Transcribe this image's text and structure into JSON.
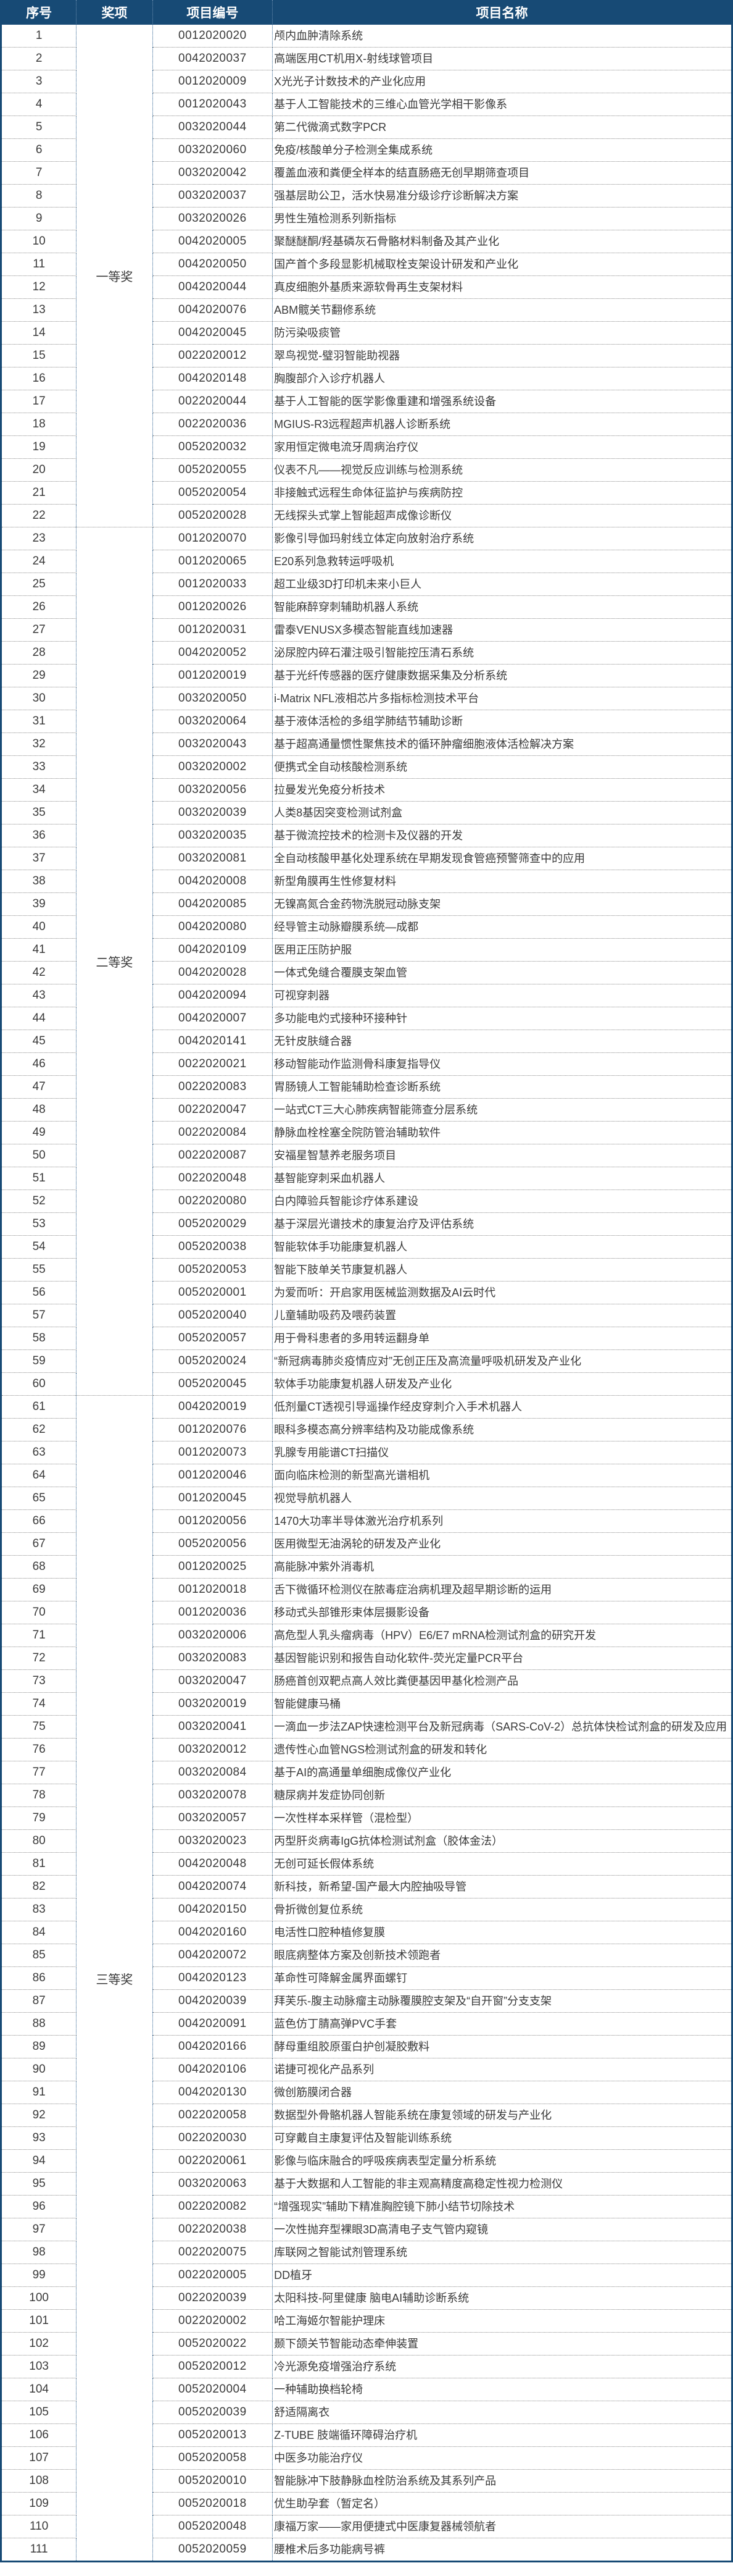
{
  "header": {
    "no": "序号",
    "award": "奖项",
    "code": "项目编号",
    "name": "项目名称"
  },
  "colors": {
    "header_bg": "#174a75",
    "frame": "#174a75"
  },
  "groups": [
    {
      "award": "一等奖",
      "rows": [
        [
          "1",
          "0012020020",
          "颅内血肿清除系统"
        ],
        [
          "2",
          "0042020037",
          "高端医用CT机用X-射线球管项目"
        ],
        [
          "3",
          "0012020009",
          "X光光子计数技术的产业化应用"
        ],
        [
          "4",
          "0012020043",
          "基于人工智能技术的三维心血管光学相干影像系"
        ],
        [
          "5",
          "0032020044",
          "第二代微滴式数字PCR"
        ],
        [
          "6",
          "0032020060",
          "免疫/核酸单分子检测全集成系统"
        ],
        [
          "7",
          "0032020042",
          "覆盖血液和粪便全样本的结直肠癌无创早期筛查项目"
        ],
        [
          "8",
          "0032020037",
          "强基层助公卫，活水快易准分级诊疗诊断解决方案"
        ],
        [
          "9",
          "0032020026",
          "男性生殖检测系列新指标"
        ],
        [
          "10",
          "0042020005",
          "聚醚醚酮/羟基磷灰石骨骼材料制备及其产业化"
        ],
        [
          "11",
          "0042020050",
          "国产首个多段显影机械取栓支架设计研发和产业化"
        ],
        [
          "12",
          "0042020044",
          "真皮细胞外基质来源软骨再生支架材料"
        ],
        [
          "13",
          "0042020076",
          "ABM髋关节翻修系统"
        ],
        [
          "14",
          "0042020045",
          "防污染吸痰管"
        ],
        [
          "15",
          "0022020012",
          "翠鸟视觉-璧羽智能助视器"
        ],
        [
          "16",
          "0042020148",
          "胸腹部介入诊疗机器人"
        ],
        [
          "17",
          "0022020044",
          "基于人工智能的医学影像重建和增强系统设备"
        ],
        [
          "18",
          "0022020036",
          "MGIUS-R3远程超声机器人诊断系统"
        ],
        [
          "19",
          "0052020032",
          "家用恒定微电流牙周病治疗仪"
        ],
        [
          "20",
          "0052020055",
          "仪表不凡——视觉反应训练与检测系统"
        ],
        [
          "21",
          "0052020054",
          "非接触式远程生命体征监护与疾病防控"
        ],
        [
          "22",
          "0052020028",
          "无线探头式掌上智能超声成像诊断仪"
        ]
      ]
    },
    {
      "award": "二等奖",
      "rows": [
        [
          "23",
          "0012020070",
          "影像引导伽玛射线立体定向放射治疗系统"
        ],
        [
          "24",
          "0012020065",
          "E20系列急救转运呼吸机"
        ],
        [
          "25",
          "0012020033",
          "超工业级3D打印机未来小巨人"
        ],
        [
          "26",
          "0012020026",
          "智能麻醉穿刺辅助机器人系统"
        ],
        [
          "27",
          "0012020031",
          "雷泰VENUSX多模态智能直线加速器"
        ],
        [
          "28",
          "0042020052",
          "泌尿腔内碎石灌注吸引智能控压清石系统"
        ],
        [
          "29",
          "0012020019",
          "基于光纤传感器的医疗健康数据采集及分析系统"
        ],
        [
          "30",
          "0032020050",
          "i-Matrix NFL液相芯片多指标检测技术平台"
        ],
        [
          "31",
          "0032020064",
          "基于液体活检的多组学肺结节辅助诊断"
        ],
        [
          "32",
          "0032020043",
          "基于超高通量惯性聚焦技术的循环肿瘤细胞液体活检解决方案"
        ],
        [
          "33",
          "0032020002",
          "便携式全自动核酸检测系统"
        ],
        [
          "34",
          "0032020056",
          "拉曼发光免疫分析技术"
        ],
        [
          "35",
          "0032020039",
          "人类8基因突变检测试剂盒"
        ],
        [
          "36",
          "0032020035",
          "基于微流控技术的检测卡及仪器的开发"
        ],
        [
          "37",
          "0032020081",
          "全自动核酸甲基化处理系统在早期发现食管癌预警筛查中的应用"
        ],
        [
          "38",
          "0042020008",
          "新型角膜再生性修复材料"
        ],
        [
          "39",
          "0042020085",
          "无镍高氮合金药物洗脱冠动脉支架"
        ],
        [
          "40",
          "0042020080",
          "经导管主动脉瓣膜系统—成都"
        ],
        [
          "41",
          "0042020109",
          "医用正压防护服"
        ],
        [
          "42",
          "0042020028",
          "一体式免缝合覆膜支架血管"
        ],
        [
          "43",
          "0042020094",
          "可视穿刺器"
        ],
        [
          "44",
          "0042020007",
          "多功能电灼式接种环接种针"
        ],
        [
          "45",
          "0042020141",
          "无针皮肤缝合器"
        ],
        [
          "46",
          "0022020021",
          "移动智能动作监测骨科康复指导仪"
        ],
        [
          "47",
          "0022020083",
          "胃肠镜人工智能辅助检查诊断系统"
        ],
        [
          "48",
          "0022020047",
          "一站式CT三大心肺疾病智能筛查分层系统"
        ],
        [
          "49",
          "0022020084",
          "静脉血栓栓塞全院防管治辅助软件"
        ],
        [
          "50",
          "0022020087",
          "安福星智慧养老服务项目"
        ],
        [
          "51",
          "0022020048",
          "基智能穿刺采血机器人"
        ],
        [
          "52",
          "0022020080",
          "白内障验兵智能诊疗体系建设"
        ],
        [
          "53",
          "0052020029",
          "基于深层光谱技术的康复治疗及评估系统"
        ],
        [
          "54",
          "0052020038",
          "智能软体手功能康复机器人"
        ],
        [
          "55",
          "0052020053",
          "智能下肢单关节康复机器人"
        ],
        [
          "56",
          "0052020001",
          "为爱而听：开启家用医械监测数据及AI云时代"
        ],
        [
          "57",
          "0052020040",
          "儿童辅助吸药及喂药装置"
        ],
        [
          "58",
          "0052020057",
          "用于骨科患者的多用转运翻身单"
        ],
        [
          "59",
          "0052020024",
          "“新冠病毒肺炎疫情应对”无创正压及高流量呼吸机研发及产业化"
        ],
        [
          "60",
          "0052020045",
          "软体手功能康复机器人研发及产业化"
        ]
      ]
    },
    {
      "award": "三等奖",
      "rows": [
        [
          "61",
          "0042020019",
          "低剂量CT透视引导遥操作经皮穿刺介入手术机器人"
        ],
        [
          "62",
          "0012020076",
          "眼科多模态高分辨率结构及功能成像系统"
        ],
        [
          "63",
          "0012020073",
          "乳腺专用能谱CT扫描仪"
        ],
        [
          "64",
          "0012020046",
          "面向临床检测的新型高光谱相机"
        ],
        [
          "65",
          "0012020045",
          "视觉导航机器人"
        ],
        [
          "66",
          "0012020056",
          "1470大功率半导体激光治疗机系列"
        ],
        [
          "67",
          "0052020056",
          "医用微型无油涡轮的研发及产业化"
        ],
        [
          "68",
          "0012020025",
          "高能脉冲紫外消毒机"
        ],
        [
          "69",
          "0012020018",
          "舌下微循环检测仪在脓毒症治病机理及超早期诊断的运用"
        ],
        [
          "70",
          "0012020036",
          "移动式头部锥形束体层摄影设备"
        ],
        [
          "71",
          "0032020006",
          "高危型人乳头瘤病毒（HPV）E6/E7 mRNA检测试剂盒的研究开发"
        ],
        [
          "72",
          "0032020083",
          "基因智能识别和报告自动化软件-荧光定量PCR平台"
        ],
        [
          "73",
          "0032020047",
          "肠癌首创双靶点高人效比粪便基因甲基化检测产品"
        ],
        [
          "74",
          "0032020019",
          "智能健康马桶"
        ],
        [
          "75",
          "0032020041",
          "一滴血一步法ZAP快速检测平台及新冠病毒（SARS-CoV-2）总抗体快检试剂盒的研发及应用"
        ],
        [
          "76",
          "0032020012",
          "遗传性心血管NGS检测试剂盒的研发和转化"
        ],
        [
          "77",
          "0032020084",
          "基于AI的高通量单细胞成像仪产业化"
        ],
        [
          "78",
          "0032020078",
          "糖尿病并发症协同创新"
        ],
        [
          "79",
          "0032020057",
          "一次性样本采样管（混检型）"
        ],
        [
          "80",
          "0032020023",
          "丙型肝炎病毒IgG抗体检测试剂盒（胶体金法）"
        ],
        [
          "81",
          "0042020048",
          "无创可延长假体系统"
        ],
        [
          "82",
          "0042020074",
          "新科技，新希望-国产最大内腔抽吸导管"
        ],
        [
          "83",
          "0042020150",
          "骨折微创复位系统"
        ],
        [
          "84",
          "0042020160",
          "电活性口腔种植修复膜"
        ],
        [
          "85",
          "0042020072",
          "眼底病整体方案及创新技术领跑者"
        ],
        [
          "86",
          "0042020123",
          "革命性可降解金属界面螺钉"
        ],
        [
          "87",
          "0042020039",
          "拜芙乐-腹主动脉瘤主动脉覆膜腔支架及“自开窗”分支支架"
        ],
        [
          "88",
          "0042020091",
          "蓝色仿丁腈高弹PVC手套"
        ],
        [
          "89",
          "0042020166",
          "酵母重组胶原蛋白护创凝胶敷料"
        ],
        [
          "90",
          "0042020106",
          "诺捷可视化产品系列"
        ],
        [
          "91",
          "0042020130",
          "微创筋膜闭合器"
        ],
        [
          "92",
          "0022020058",
          "数据型外骨骼机器人智能系统在康复领域的研发与产业化"
        ],
        [
          "93",
          "0022020030",
          "可穿戴自主康复评估及智能训练系统"
        ],
        [
          "94",
          "0022020061",
          "影像与临床融合的呼吸疾病表型定量分析系统"
        ],
        [
          "95",
          "0032020063",
          "基于大数据和人工智能的非主观高精度高稳定性视力检测仪"
        ],
        [
          "96",
          "0022020082",
          "“增强现实”辅助下精准胸腔镜下肺小结节切除技术"
        ],
        [
          "97",
          "0022020038",
          "一次性抛弃型裸眼3D高清电子支气管内窥镜"
        ],
        [
          "98",
          "0022020075",
          "库联网之智能试剂管理系统"
        ],
        [
          "99",
          "0022020005",
          "DD植牙"
        ],
        [
          "100",
          "0022020039",
          "太阳科技-阿里健康 脑电AI辅助诊断系统"
        ],
        [
          "101",
          "0022020002",
          "哈工海姬尔智能护理床"
        ],
        [
          "102",
          "0052020022",
          "颞下颌关节智能动态牵伸装置"
        ],
        [
          "103",
          "0052020012",
          "冷光源免疫增强治疗系统"
        ],
        [
          "104",
          "0052020004",
          "一种辅助换档轮椅"
        ],
        [
          "105",
          "0052020039",
          "舒适隔离衣"
        ],
        [
          "106",
          "0052020013",
          "Z-TUBE 肢端循环障碍治疗机"
        ],
        [
          "107",
          "0052020058",
          "中医多功能治疗仪"
        ],
        [
          "108",
          "0052020010",
          "智能脉冲下肢静脉血栓防治系统及其系列产品"
        ],
        [
          "109",
          "0052020018",
          "优生助孕套（暂定名）"
        ],
        [
          "110",
          "0052020048",
          "康福万家——家用便捷式中医康复器械领航者"
        ],
        [
          "111",
          "0052020059",
          "腰椎术后多功能病号裤"
        ]
      ]
    }
  ]
}
